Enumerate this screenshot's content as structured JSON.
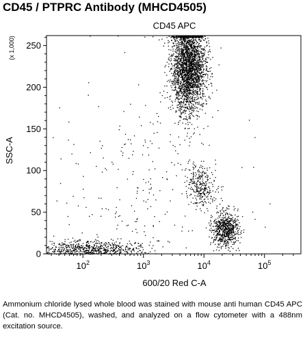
{
  "heading": "CD45 / PTPRC Antibody (MHCD4505)",
  "caption": "Ammonium chloride lysed whole blood was stained with mouse anti human CD45 APC (Cat. no. MHCD4505), washed, and analyzed on a flow cytometer with a 488nm excitation source.",
  "chart_data": {
    "type": "scatter",
    "title": "CD45 APC",
    "xlabel": "600/20 Red C-A",
    "ylabel": "SSC-A",
    "y_multiplier_label": "(x 1,000)",
    "x_scale": "log",
    "xlim": [
      25,
      400000
    ],
    "ylim": [
      0,
      262
    ],
    "x_ticks": [
      {
        "base": "10",
        "exp": "2",
        "value": 100
      },
      {
        "base": "10",
        "exp": "3",
        "value": 1000
      },
      {
        "base": "10",
        "exp": "4",
        "value": 10000
      },
      {
        "base": "10",
        "exp": "5",
        "value": 100000
      }
    ],
    "y_ticks": [
      "0",
      "50",
      "100",
      "150",
      "200",
      "250"
    ],
    "y_tick_values": [
      0,
      50,
      100,
      150,
      200,
      250
    ],
    "dot_color": "#000000",
    "populations": [
      {
        "name_hint": "granulocytes",
        "x_center": 5500,
        "x_log_sd": 0.14,
        "y_center": 225,
        "y_sd": 28,
        "count": 2600
      },
      {
        "name_hint": "monocytes",
        "x_center": 9000,
        "x_log_sd": 0.12,
        "y_center": 82,
        "y_sd": 13,
        "count": 300
      },
      {
        "name_hint": "lymphocytes",
        "x_center": 22000,
        "x_log_sd": 0.11,
        "y_center": 30,
        "y_sd": 10,
        "count": 700
      },
      {
        "name_hint": "debris",
        "x_center": 130,
        "x_log_sd": 0.45,
        "y_center": 6,
        "y_sd": 5,
        "count": 650
      },
      {
        "name_hint": "scatter",
        "x_center": 900,
        "x_log_sd": 0.75,
        "y_center": 90,
        "y_sd": 70,
        "count": 260
      }
    ],
    "grid": false
  }
}
